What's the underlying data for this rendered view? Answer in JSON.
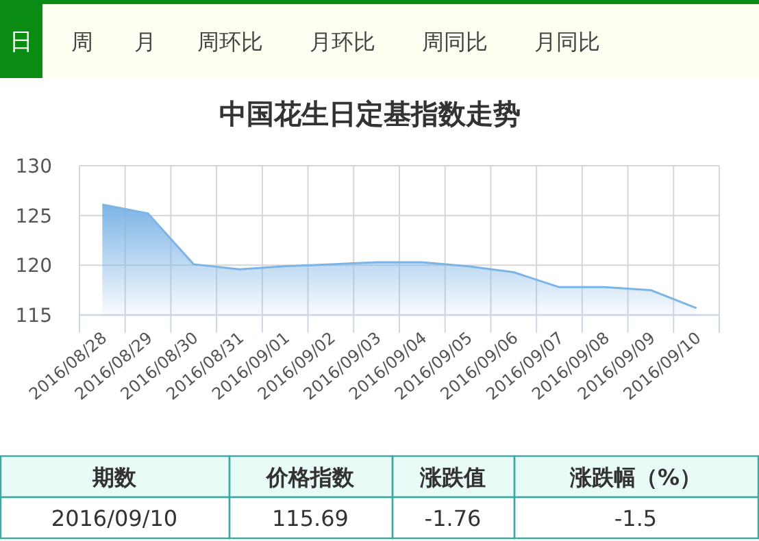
{
  "chart_data": {
    "type": "area",
    "title": "中国花生日定基指数走势",
    "categories": [
      "2016/08/28",
      "2016/08/29",
      "2016/08/30",
      "2016/08/31",
      "2016/09/01",
      "2016/09/02",
      "2016/09/03",
      "2016/09/04",
      "2016/09/05",
      "2016/09/06",
      "2016/09/07",
      "2016/09/08",
      "2016/09/09",
      "2016/09/10"
    ],
    "series": [
      {
        "color": "#7db4e6",
        "values": [
          126.1,
          125.2,
          120.1,
          119.6,
          119.9,
          120.1,
          120.3,
          120.3,
          119.9,
          119.3,
          117.8,
          117.8,
          117.5,
          115.7
        ]
      }
    ],
    "ylim": [
      115,
      130
    ],
    "yticks": [
      115,
      120,
      125,
      130
    ],
    "grid": true,
    "marker": "none",
    "annotations": [
      "日",
      "周",
      "月",
      "周环比",
      "月环比",
      "周同比",
      "月同比",
      "期数",
      "价格指数",
      "涨跌值",
      "涨跌幅（%）",
      "2016/09/10",
      "115.69",
      "-1.76",
      "-1.5"
    ]
  }
}
